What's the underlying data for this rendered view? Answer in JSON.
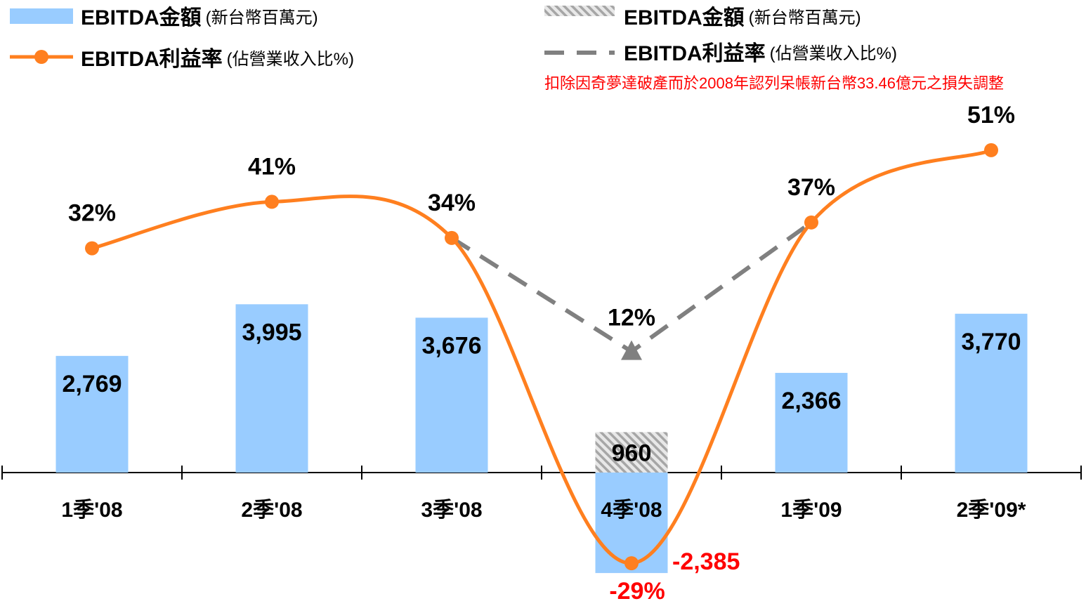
{
  "chart_data": {
    "type": "bar-line",
    "categories": [
      "1季'08",
      "2季'08",
      "3季'08",
      "4季'08",
      "1季'09",
      "2季'09*"
    ],
    "series": [
      {
        "name": "EBITDA金額",
        "unit": "(新台幣百萬元)",
        "color": "#99ccff",
        "values": [
          2769,
          3995,
          3676,
          -2385,
          2366,
          3770
        ],
        "value_labels": [
          "2,769",
          "3,995",
          "3,676",
          "-2,385",
          "2,366",
          "3,770"
        ]
      },
      {
        "name": "EBITDA利益率",
        "unit": "(佔營業收入比%)",
        "color": "#ff7f1f",
        "axis": "y2",
        "values": [
          32,
          41,
          34,
          -29,
          37,
          51
        ],
        "value_labels": [
          "32%",
          "41%",
          "34%",
          "-29%",
          "37%",
          "51%"
        ]
      },
      {
        "name": "EBITDA金額",
        "unit": "(新台幣百萬元)",
        "color": "#a6a6a6",
        "values": [
          null,
          null,
          null,
          960,
          null,
          null
        ],
        "value_labels": [
          null,
          null,
          null,
          "960",
          null,
          null
        ]
      },
      {
        "name": "EBITDA利益率",
        "unit": "(佔營業收入比%)",
        "color": "#808080",
        "axis": "y2",
        "values": [
          null,
          null,
          34,
          12,
          37,
          null
        ],
        "value_labels": [
          null,
          null,
          null,
          "12%",
          null,
          null
        ]
      }
    ],
    "annotation": "扣除因奇夢達破產而於2008年認列呆帳新台幣33.46億元之損失調整",
    "negative_color": "#ff0000",
    "ylim": [
      -3500,
      9000
    ],
    "y2lim": [
      -40,
      62
    ]
  }
}
